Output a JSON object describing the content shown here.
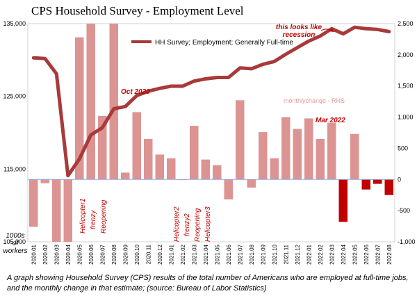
{
  "chart_data": {
    "type": "bar+line",
    "title": "CPS Household Survey - Employment Level",
    "categories": [
      "2020.01",
      "2020.02",
      "2020.03",
      "2020.04",
      "2020.05",
      "2020.06",
      "2020.07",
      "2020.08",
      "2020.09",
      "2020.10",
      "2020.11",
      "2020.12",
      "2021.01",
      "2021.02",
      "2021.03",
      "2021.04",
      "2021.05",
      "2021.06",
      "2021.07",
      "2021.08",
      "2021.09",
      "2021.10",
      "2021.11",
      "2021.12",
      "2022.01",
      "2022.02",
      "2022.03",
      "2022.04",
      "2022.05",
      "2022.06",
      "2022.07",
      "2022.08"
    ],
    "line_series": {
      "name": "HH Survey; Employment; Generally Full-time",
      "axis": "left",
      "values": [
        130300,
        130200,
        128100,
        114100,
        116400,
        119700,
        120700,
        123300,
        123600,
        125100,
        125700,
        126100,
        126400,
        126400,
        127100,
        127400,
        127600,
        127600,
        128900,
        128800,
        129400,
        129800,
        130800,
        131700,
        132600,
        133300,
        134300,
        133600,
        134500,
        134300,
        134200,
        133900
      ]
    },
    "bar_series": {
      "name": "monthlychange - RHS",
      "axis": "right",
      "values": [
        -760,
        -60,
        -2400,
        -13800,
        2280,
        3300,
        1020,
        2700,
        110,
        1080,
        650,
        400,
        340,
        -10,
        860,
        320,
        230,
        -320,
        1270,
        -130,
        760,
        340,
        1000,
        810,
        980,
        650,
        910,
        -680,
        730,
        -160,
        -70,
        -250
      ]
    },
    "y_left": {
      "ylim": [
        105000,
        135000
      ],
      "ticks": [
        "105,000",
        "115,000",
        "125,000",
        "135,000"
      ],
      "tick_values": [
        105000,
        115000,
        125000,
        135000
      ]
    },
    "y_right": {
      "ylim": [
        -1000,
        2500
      ],
      "ticks": [
        "-1,000",
        "-500",
        "0",
        "500",
        "1,000",
        "1,500",
        "2,000",
        "2,500"
      ],
      "tick_values": [
        -1000,
        -500,
        0,
        500,
        1000,
        1500,
        2000,
        2500
      ]
    },
    "left_axis_label": [
      "1000s",
      "of",
      "workers"
    ],
    "legend": {
      "line_label": "HH Survey; Employment; Generally Full-time",
      "bar_label": "monthlychange - RHS",
      "placement": "top"
    },
    "annotations": {
      "oct2020": "Oct 2020",
      "mar2022": "Mar 2022",
      "recession": [
        "this looks like",
        "recession"
      ],
      "helicopter1": "Helicopter1",
      "frenzy1": "frenzy",
      "reopening1": "Reopening",
      "helicopter2": "Helicopter2",
      "frenzy2": "frenzy2",
      "reopening2": "Reopening",
      "helicopter3": "Helicopter3"
    },
    "colors": {
      "line": "#a83a3a",
      "bar": "#dc9493",
      "bar_highlight": "#c00000",
      "zero_line": "#8eaadb",
      "annotation": "#c00000"
    }
  },
  "caption": "A graph showing Household Survey (CPS) results of the total number of Americans who are employed at full-time jobs, and the monthly change in that estimate; (source: Bureau of Labor Statistics)"
}
